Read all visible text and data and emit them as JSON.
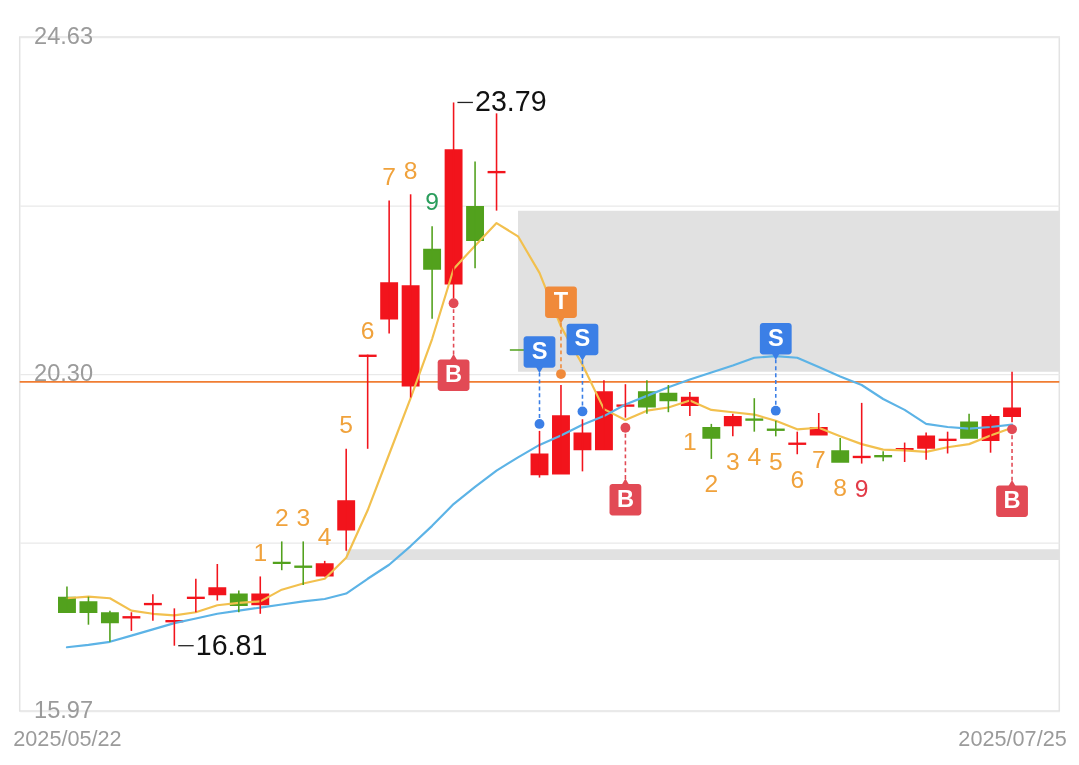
{
  "chart_data": {
    "type": "candlestick",
    "categories": [
      "2025/05/22",
      null,
      null,
      null,
      null,
      null,
      null,
      null,
      null,
      null,
      null,
      null,
      null,
      null,
      null,
      null,
      null,
      null,
      null,
      null,
      null,
      null,
      null,
      null,
      null,
      null,
      null,
      null,
      null,
      null,
      null,
      null,
      null,
      null,
      null,
      null,
      null,
      null,
      null,
      null,
      null,
      null,
      null,
      null,
      "2025/07/25"
    ],
    "ohlc": [
      [
        17.43,
        17.57,
        17.23,
        17.24
      ],
      [
        17.37,
        17.44,
        17.08,
        17.24
      ],
      [
        17.23,
        17.26,
        16.86,
        17.11
      ],
      [
        17.17,
        17.24,
        17.0,
        17.18
      ],
      [
        17.34,
        17.47,
        17.13,
        17.35
      ],
      [
        17.12,
        17.29,
        16.81,
        17.13
      ],
      [
        17.42,
        17.67,
        17.24,
        17.43
      ],
      [
        17.47,
        17.86,
        17.39,
        17.55
      ],
      [
        17.47,
        17.52,
        17.24,
        17.33
      ],
      [
        17.34,
        17.7,
        17.22,
        17.47
      ],
      [
        17.88,
        18.15,
        17.78,
        17.87
      ],
      [
        17.83,
        18.15,
        17.59,
        17.82
      ],
      [
        17.71,
        17.9,
        17.7,
        17.86
      ],
      [
        18.3,
        19.34,
        18.03,
        18.67
      ],
      [
        20.53,
        20.55,
        19.34,
        20.54
      ],
      [
        21.01,
        22.53,
        20.82,
        21.47
      ],
      [
        20.15,
        22.61,
        20.0,
        21.43
      ],
      [
        21.9,
        22.2,
        21.01,
        21.65
      ],
      [
        21.46,
        23.79,
        21.27,
        23.18
      ],
      [
        22.45,
        23.03,
        21.66,
        22.02
      ],
      [
        22.89,
        23.65,
        22.4,
        22.9
      ],
      [
        20.61,
        20.61,
        20.61,
        20.61
      ],
      [
        19.01,
        19.57,
        18.97,
        19.27
      ],
      [
        19.02,
        20.16,
        19.02,
        19.76
      ],
      [
        19.33,
        19.72,
        19.05,
        19.54
      ],
      [
        19.33,
        20.22,
        19.33,
        20.07
      ],
      [
        19.89,
        20.17,
        19.74,
        19.9
      ],
      [
        20.07,
        20.22,
        19.79,
        19.88
      ],
      [
        20.05,
        20.16,
        19.81,
        19.96
      ],
      [
        19.9,
        20.07,
        19.76,
        20.0
      ],
      [
        19.61,
        19.66,
        19.21,
        19.48
      ],
      [
        19.64,
        19.79,
        19.5,
        19.75
      ],
      [
        19.72,
        19.99,
        19.56,
        19.71
      ],
      [
        19.59,
        19.7,
        19.5,
        19.58
      ],
      [
        19.4,
        19.56,
        19.27,
        19.41
      ],
      [
        19.52,
        19.8,
        19.52,
        19.61
      ],
      [
        19.31,
        19.48,
        19.17,
        19.17
      ],
      [
        19.23,
        19.93,
        19.15,
        19.24
      ],
      [
        19.25,
        19.31,
        19.18,
        19.24
      ],
      [
        19.33,
        19.42,
        19.17,
        19.34
      ],
      [
        19.35,
        19.55,
        19.2,
        19.5
      ],
      [
        19.45,
        19.56,
        19.28,
        19.46
      ],
      [
        19.68,
        19.79,
        19.48,
        19.48
      ],
      [
        19.45,
        19.78,
        19.29,
        19.75
      ],
      [
        19.76,
        20.33,
        19.68,
        19.86
      ]
    ],
    "colors": [
      "#52a11d",
      "#52a11d",
      "#52a11d",
      "#f2141c",
      "#f2141c",
      "#f2141c",
      "#f2141c",
      "#f2141c",
      "#52a11d",
      "#f2141c",
      "#52a11d",
      "#52a11d",
      "#f2141c",
      "#f2141c",
      "#f2141c",
      "#f2141c",
      "#f2141c",
      "#52a11d",
      "#f2141c",
      "#52a11d",
      "#f2141c",
      "#52a11d",
      "#f2141c",
      "#f2141c",
      "#f2141c",
      "#f2141c",
      "#f2141c",
      "#52a11d",
      "#52a11d",
      "#f2141c",
      "#52a11d",
      "#f2141c",
      "#52a11d",
      "#52a11d",
      "#f2141c",
      "#f2141c",
      "#52a11d",
      "#f2141c",
      "#52a11d",
      "#f2141c",
      "#f2141c",
      "#f2141c",
      "#52a11d",
      "#f2141c",
      "#f2141c"
    ],
    "value_labels": [
      null,
      null,
      null,
      null,
      null,
      null,
      null,
      null,
      null,
      "1",
      "2",
      "3",
      "4",
      "5",
      "6",
      "7",
      "8",
      "9",
      null,
      null,
      null,
      null,
      null,
      null,
      null,
      null,
      null,
      null,
      null,
      "1",
      "2",
      "3",
      "4",
      "5",
      "6",
      "7",
      "8",
      "9",
      null,
      null,
      null,
      null,
      null,
      null,
      null
    ],
    "series": [
      {
        "type": "line",
        "color": "#f2c04e",
        "values": [
          17.42,
          17.44,
          17.42,
          17.26,
          17.22,
          17.2,
          17.24,
          17.33,
          17.36,
          17.38,
          17.53,
          17.61,
          17.67,
          17.94,
          18.55,
          19.27,
          19.99,
          20.75,
          21.65,
          21.95,
          22.24,
          22.07,
          21.6,
          20.91,
          20.42,
          19.85,
          19.71,
          19.83,
          19.87,
          19.96,
          19.84,
          19.81,
          19.78,
          19.7,
          19.59,
          19.61,
          19.5,
          19.4,
          19.33,
          19.32,
          19.3,
          19.36,
          19.4,
          19.51,
          19.61
        ]
      },
      {
        "type": "line",
        "color": "#5cb3e6",
        "values": [
          16.79,
          16.82,
          16.86,
          16.94,
          17.02,
          17.1,
          17.16,
          17.22,
          17.26,
          17.3,
          17.34,
          17.38,
          17.41,
          17.48,
          17.67,
          17.85,
          18.09,
          18.35,
          18.63,
          18.85,
          19.06,
          19.23,
          19.39,
          19.51,
          19.65,
          19.76,
          19.91,
          20.02,
          20.13,
          20.23,
          20.32,
          20.41,
          20.51,
          20.53,
          20.51,
          20.39,
          20.27,
          20.16,
          19.98,
          19.84,
          19.66,
          19.62,
          19.6,
          19.62,
          19.65
        ]
      },
      {
        "type": "scatter",
        "marker": "circle",
        "colors": [
          null,
          null,
          null,
          null,
          null,
          null,
          null,
          null,
          null,
          null,
          null,
          null,
          null,
          null,
          null,
          null,
          null,
          null,
          "#e24a55",
          null,
          null,
          null,
          "#3b7fe6",
          "#f08a3a",
          "#3b7fe6",
          null,
          "#e24a55",
          null,
          null,
          null,
          null,
          null,
          null,
          "#3b7fe6",
          null,
          null,
          null,
          null,
          null,
          null,
          null,
          null,
          null,
          null,
          "#e24a55"
        ],
        "values": [
          null,
          null,
          null,
          null,
          null,
          null,
          null,
          null,
          null,
          null,
          null,
          null,
          null,
          null,
          null,
          null,
          null,
          null,
          21.21,
          null,
          null,
          null,
          19.66,
          20.3,
          19.82,
          null,
          19.61,
          null,
          null,
          null,
          null,
          null,
          null,
          19.83,
          null,
          null,
          null,
          null,
          null,
          null,
          null,
          null,
          null,
          null,
          19.59
        ],
        "value_labels": [
          null,
          null,
          null,
          null,
          null,
          null,
          null,
          null,
          null,
          null,
          null,
          null,
          null,
          null,
          null,
          null,
          null,
          null,
          "B",
          null,
          null,
          null,
          "S",
          "T",
          "S",
          null,
          "B",
          null,
          null,
          null,
          null,
          null,
          null,
          "S",
          null,
          null,
          null,
          null,
          null,
          null,
          null,
          null,
          null,
          null,
          "B"
        ]
      }
    ],
    "ylim": [
      15.97,
      24.63
    ],
    "yticks": [
      15.97,
      {
        "value": 18.135,
        "label": null
      },
      {
        "value": 20.3,
        "label": "20.30"
      },
      {
        "value": 22.465,
        "label": null
      },
      24.63
    ],
    "grid": "y",
    "ref_lines": [
      {
        "axis": "y",
        "value": 20.2,
        "color": "#f07d32"
      }
    ],
    "bands": [
      {
        "axis": "y",
        "from": 20.33,
        "to": 22.4,
        "color": "#e1e1e1"
      },
      {
        "axis": "y",
        "from": 17.91,
        "to": 18.05,
        "color": "#e1e1e1"
      }
    ],
    "annotations": [
      "23.79",
      "16.81"
    ]
  }
}
